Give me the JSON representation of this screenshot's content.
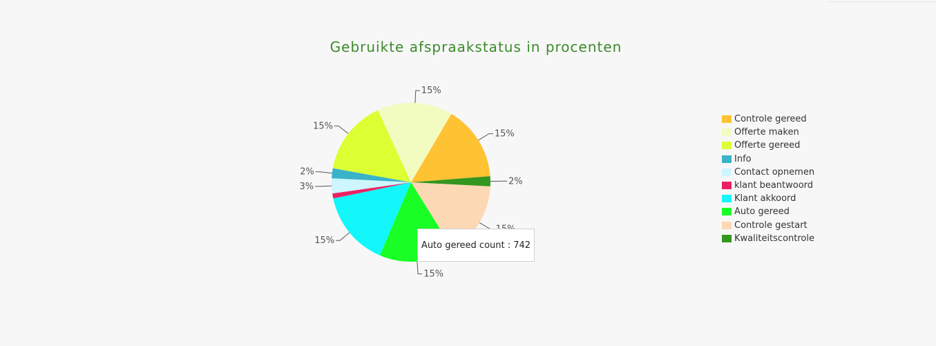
{
  "chart_data": {
    "type": "pie",
    "title": "Gebruikte afspraakstatus in procenten",
    "legend_position": "right",
    "slices": [
      {
        "name": "Controle gereed",
        "value": 15,
        "label": "15%",
        "color": "#ffc233"
      },
      {
        "name": "Kwaliteitscontrole",
        "value": 2,
        "label": "2%",
        "color": "#33961f"
      },
      {
        "name": "Controle gestart",
        "value": 15,
        "label": "15%",
        "color": "#fdd8b4"
      },
      {
        "name": "Auto gereed",
        "value": 15,
        "label": "15%",
        "color": "#19ff26"
      },
      {
        "name": "Klant akkoord",
        "value": 15,
        "label": "15%",
        "color": "#13f7fa"
      },
      {
        "name": "klant beantwoord",
        "value": 1,
        "label": "",
        "color": "#eb2164"
      },
      {
        "name": "Contact opnemen",
        "value": 3,
        "label": "3%",
        "color": "#cdf6ff"
      },
      {
        "name": "Info",
        "value": 2,
        "label": "2%",
        "color": "#3ab3c8"
      },
      {
        "name": "Offerte gereed",
        "value": 15,
        "label": "15%",
        "color": "#dcff33"
      },
      {
        "name": "Offerte maken",
        "value": 15,
        "label": "15%",
        "color": "#f2fbc0"
      }
    ],
    "legend": [
      {
        "label": "Controle gereed",
        "color": "#ffc233"
      },
      {
        "label": "Offerte maken",
        "color": "#f2fbc0"
      },
      {
        "label": "Offerte gereed",
        "color": "#dcff33"
      },
      {
        "label": "Info",
        "color": "#3ab3c8"
      },
      {
        "label": "Contact opnemen",
        "color": "#cdf6ff"
      },
      {
        "label": "klant beantwoord",
        "color": "#eb2164"
      },
      {
        "label": "Klant akkoord",
        "color": "#13f7fa"
      },
      {
        "label": "Auto gereed",
        "color": "#19ff26"
      },
      {
        "label": "Controle gestart",
        "color": "#fdd8b4"
      },
      {
        "label": "Kwaliteitscontrole",
        "color": "#33961f"
      }
    ],
    "tooltip": {
      "text": "Auto gereed count : 742",
      "series": "Auto gereed",
      "count": 742
    }
  }
}
